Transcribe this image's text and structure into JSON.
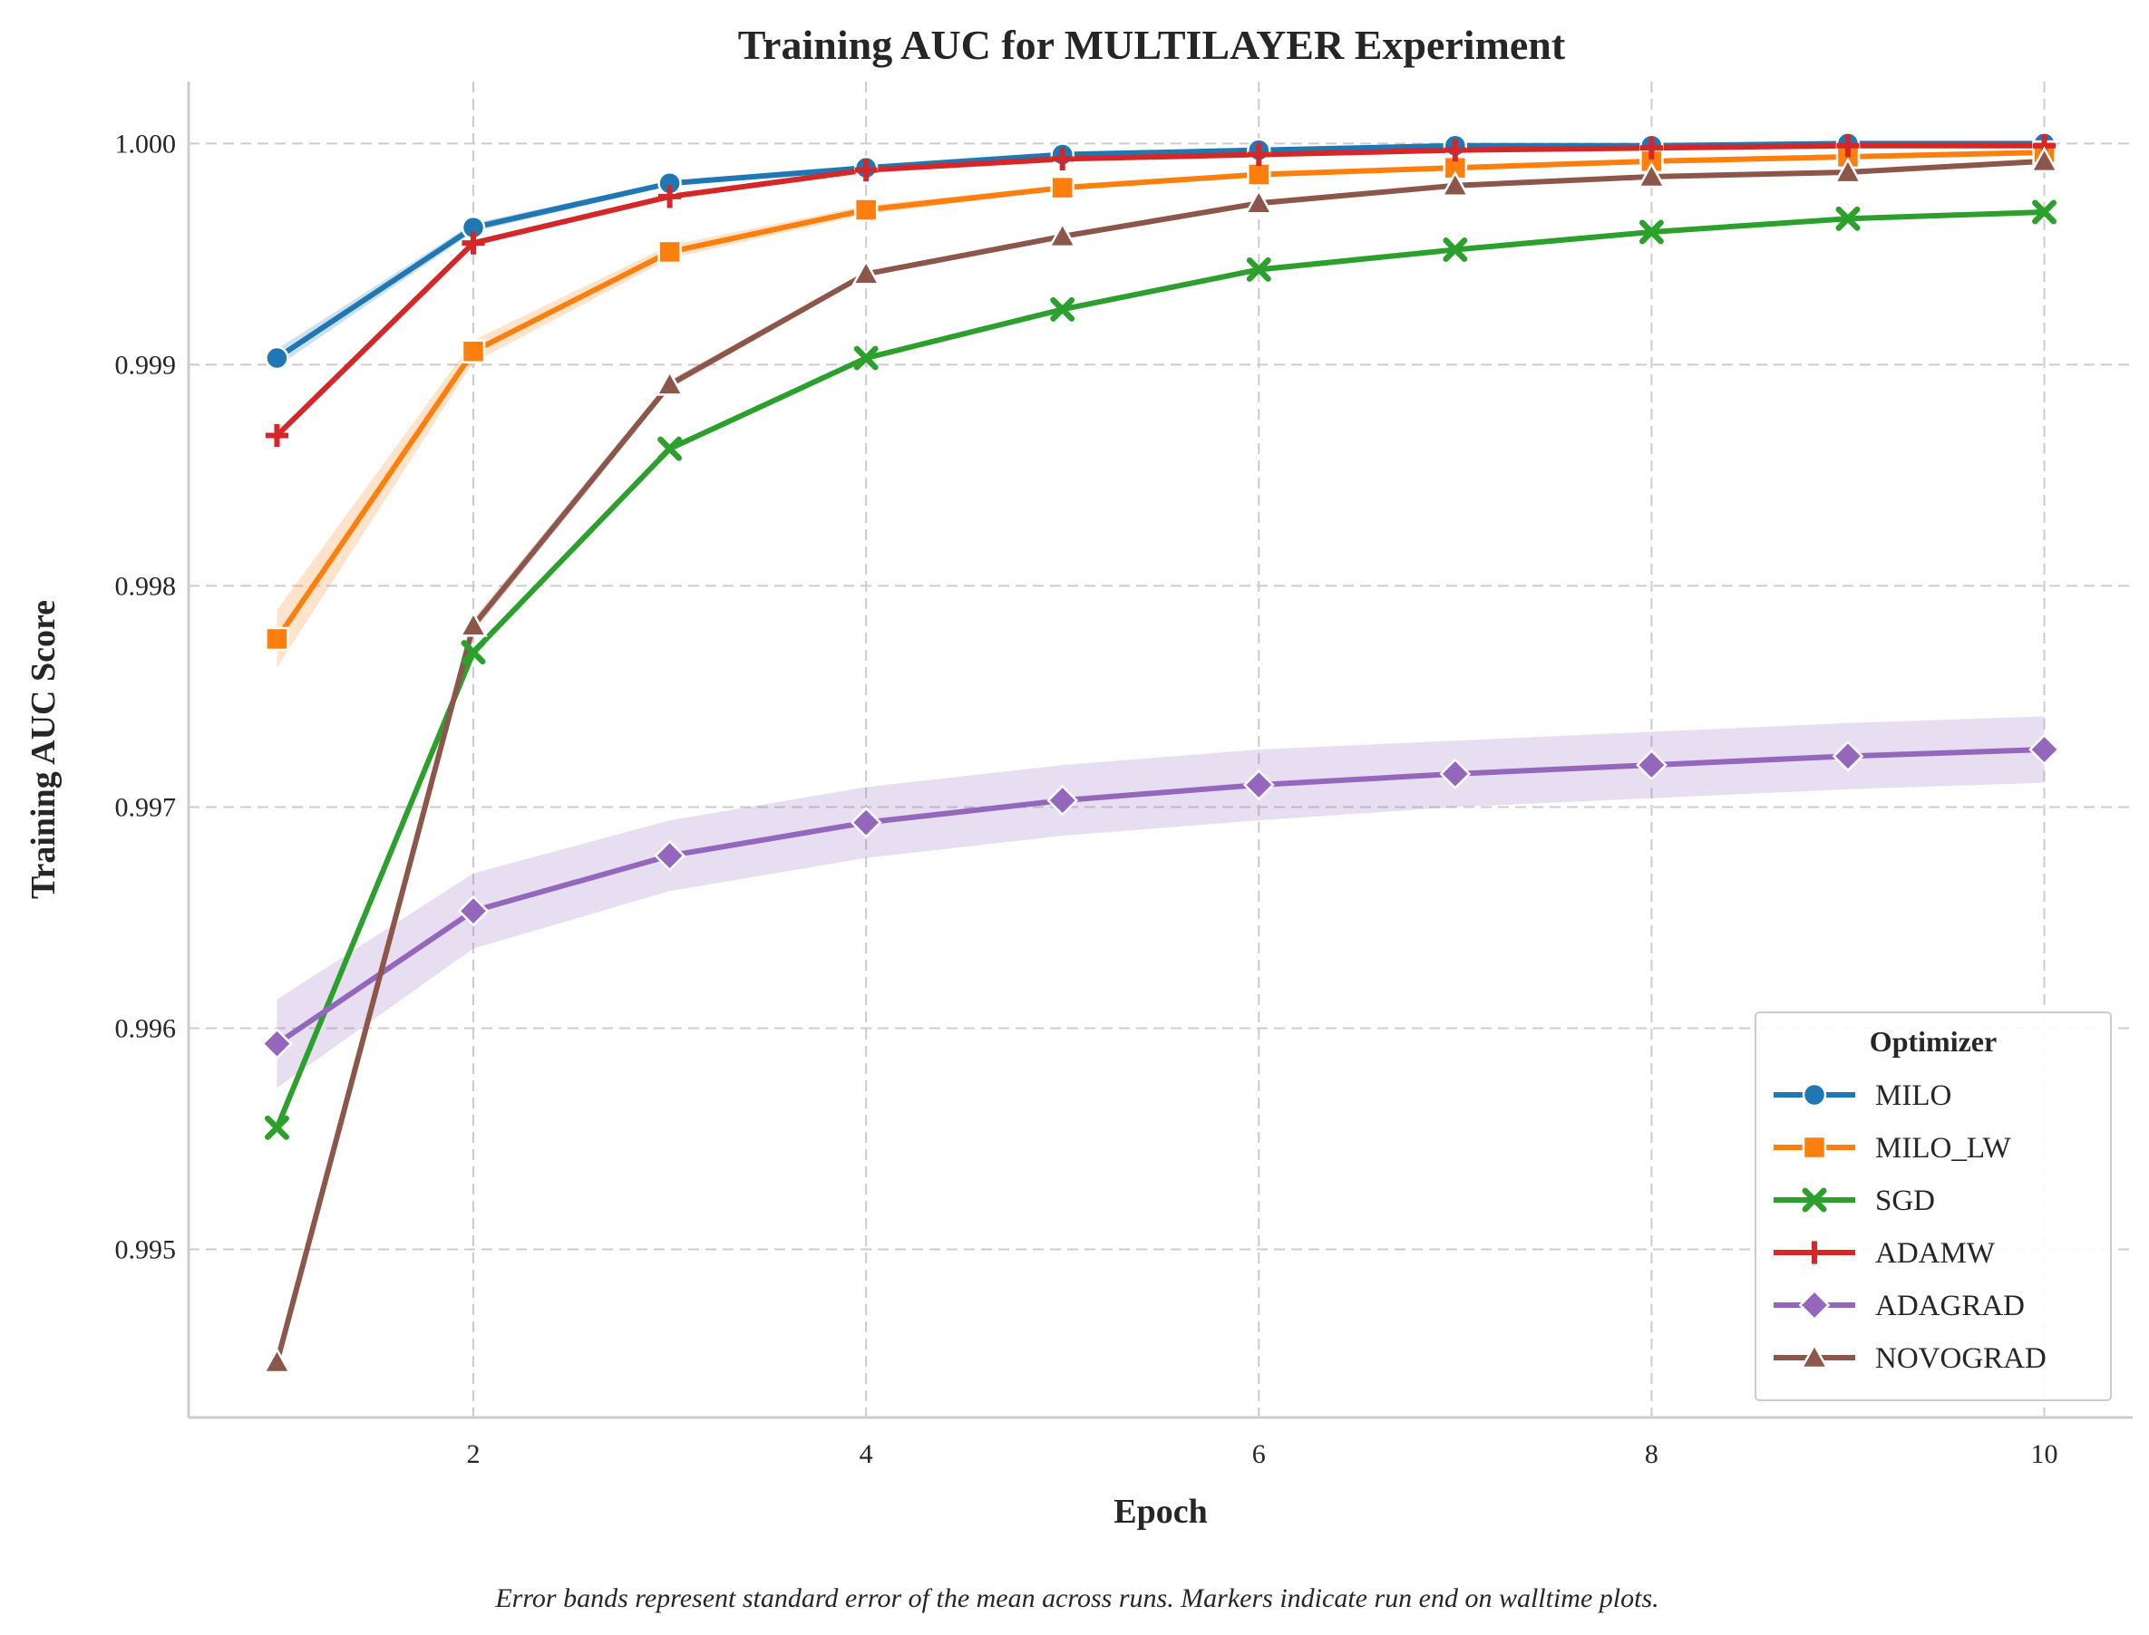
{
  "chart_data": {
    "type": "line",
    "title": "Training AUC for MULTILAYER Experiment",
    "xlabel": "Epoch",
    "ylabel": "Training AUC Score",
    "xlim": [
      0.55,
      10.45
    ],
    "ylim": [
      0.99424,
      1.00028
    ],
    "xticks": [
      2,
      4,
      6,
      8,
      10
    ],
    "xtick_labels": [
      "2",
      "4",
      "6",
      "8",
      "10"
    ],
    "yticks": [
      0.995,
      0.996,
      0.997,
      0.998,
      0.999,
      1.0
    ],
    "ytick_labels": [
      "0.995",
      "0.996",
      "0.997",
      "0.998",
      "0.999",
      "1.000"
    ],
    "grid": true,
    "legend": {
      "title": "Optimizer",
      "placement": "lower-right"
    },
    "caption": "Error bands represent standard error of the mean across runs. Markers indicate run end on walltime plots.",
    "x": [
      1,
      2,
      3,
      4,
      5,
      6,
      7,
      8,
      9,
      10
    ],
    "series": [
      {
        "name": "MILO",
        "color": "#1f77b4",
        "marker": "circle",
        "values": [
          0.99903,
          0.99962,
          0.99982,
          0.99989,
          0.99995,
          0.99997,
          0.99999,
          0.99999,
          1.0,
          1.0
        ],
        "error": [
          4e-05,
          2e-05,
          1e-05,
          1e-05,
          1e-05,
          0.0,
          0.0,
          0.0,
          0.0,
          0.0
        ]
      },
      {
        "name": "MILO_LW",
        "color": "#ff7f0e",
        "marker": "square",
        "values": [
          0.99776,
          0.99906,
          0.99951,
          0.9997,
          0.9998,
          0.99986,
          0.99989,
          0.99992,
          0.99994,
          0.99996
        ],
        "error": [
          0.00013,
          5e-05,
          3e-05,
          2e-05,
          1e-05,
          1e-05,
          1e-05,
          1e-05,
          0.0,
          0.0
        ]
      },
      {
        "name": "SGD",
        "color": "#2ca02c",
        "marker": "x",
        "values": [
          0.99555,
          0.9977,
          0.99862,
          0.99903,
          0.99925,
          0.99943,
          0.99952,
          0.9996,
          0.99966,
          0.99969
        ],
        "error": [
          2e-05,
          2e-05,
          1e-05,
          1e-05,
          1e-05,
          1e-05,
          1e-05,
          1e-05,
          1e-05,
          1e-05
        ]
      },
      {
        "name": "ADAMW",
        "color": "#d62728",
        "marker": "plus",
        "values": [
          0.99868,
          0.99955,
          0.99976,
          0.99988,
          0.99993,
          0.99995,
          0.99997,
          0.99998,
          0.99999,
          0.99999
        ],
        "error": [
          1e-05,
          1e-05,
          1e-05,
          0.0,
          0.0,
          0.0,
          0.0,
          0.0,
          0.0,
          0.0
        ]
      },
      {
        "name": "ADAGRAD",
        "color": "#9467bd",
        "marker": "diamond",
        "values": [
          0.99593,
          0.99653,
          0.99678,
          0.99693,
          0.99703,
          0.9971,
          0.99715,
          0.99719,
          0.99723,
          0.99726
        ],
        "error": [
          0.0002,
          0.00017,
          0.00016,
          0.00016,
          0.00016,
          0.00016,
          0.00015,
          0.00015,
          0.00015,
          0.00015
        ]
      },
      {
        "name": "NOVOGRAD",
        "color": "#8c564b",
        "marker": "triangle",
        "values": [
          0.99449,
          0.99782,
          0.99891,
          0.99941,
          0.99958,
          0.99973,
          0.99981,
          0.99985,
          0.99987,
          0.99992
        ],
        "error": [
          3e-05,
          3e-05,
          2e-05,
          1e-05,
          1e-05,
          1e-05,
          1e-05,
          0.0,
          0.0,
          0.0
        ]
      }
    ]
  }
}
